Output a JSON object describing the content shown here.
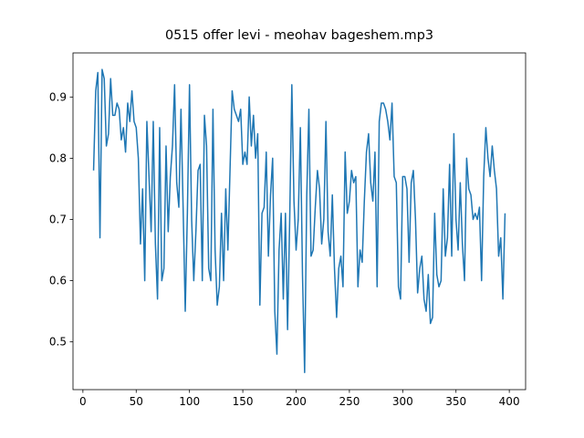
{
  "chart_data": {
    "type": "line",
    "title": "0515 offer levi - meohav bageshem.mp3",
    "x": [
      10,
      12,
      14,
      16,
      18,
      20,
      22,
      24,
      26,
      28,
      30,
      32,
      34,
      36,
      38,
      40,
      42,
      44,
      46,
      48,
      50,
      52,
      54,
      56,
      58,
      60,
      62,
      64,
      66,
      68,
      70,
      72,
      74,
      76,
      78,
      80,
      82,
      84,
      86,
      88,
      90,
      92,
      94,
      96,
      98,
      100,
      102,
      104,
      106,
      108,
      110,
      112,
      114,
      116,
      118,
      120,
      122,
      124,
      126,
      128,
      130,
      132,
      134,
      136,
      138,
      140,
      142,
      144,
      146,
      148,
      150,
      152,
      154,
      156,
      158,
      160,
      162,
      164,
      166,
      168,
      170,
      172,
      174,
      176,
      178,
      180,
      182,
      184,
      186,
      188,
      190,
      192,
      194,
      196,
      198,
      200,
      202,
      204,
      206,
      208,
      210,
      212,
      214,
      216,
      218,
      220,
      222,
      224,
      226,
      228,
      230,
      232,
      234,
      236,
      238,
      240,
      242,
      244,
      246,
      248,
      250,
      252,
      254,
      256,
      258,
      260,
      262,
      264,
      266,
      268,
      270,
      272,
      274,
      276,
      278,
      280,
      282,
      284,
      286,
      288,
      290,
      292,
      294,
      296,
      298,
      300,
      302,
      304,
      306,
      308,
      310,
      312,
      314,
      316,
      318,
      320,
      322,
      324,
      326,
      328,
      330,
      332,
      334,
      336,
      338,
      340,
      342,
      344,
      346,
      348,
      350,
      352,
      354,
      356,
      358,
      360,
      362,
      364,
      366,
      368,
      370,
      372,
      374,
      376,
      378,
      380,
      382,
      384,
      386,
      388,
      390,
      392,
      394,
      396
    ],
    "series": [
      {
        "color": "#1f77b4",
        "values": [
          0.78,
          0.91,
          0.94,
          0.67,
          0.945,
          0.93,
          0.82,
          0.84,
          0.93,
          0.87,
          0.87,
          0.89,
          0.88,
          0.83,
          0.85,
          0.81,
          0.89,
          0.86,
          0.91,
          0.86,
          0.85,
          0.8,
          0.66,
          0.75,
          0.6,
          0.86,
          0.77,
          0.68,
          0.86,
          0.66,
          0.57,
          0.85,
          0.6,
          0.62,
          0.82,
          0.68,
          0.77,
          0.82,
          0.92,
          0.76,
          0.72,
          0.88,
          0.72,
          0.55,
          0.71,
          0.92,
          0.7,
          0.6,
          0.68,
          0.78,
          0.79,
          0.6,
          0.87,
          0.82,
          0.62,
          0.6,
          0.88,
          0.65,
          0.56,
          0.59,
          0.71,
          0.6,
          0.75,
          0.65,
          0.78,
          0.91,
          0.88,
          0.87,
          0.86,
          0.88,
          0.79,
          0.81,
          0.79,
          0.9,
          0.82,
          0.87,
          0.8,
          0.84,
          0.56,
          0.71,
          0.72,
          0.81,
          0.64,
          0.74,
          0.8,
          0.55,
          0.48,
          0.65,
          0.71,
          0.57,
          0.71,
          0.52,
          0.7,
          0.92,
          0.73,
          0.65,
          0.7,
          0.85,
          0.61,
          0.45,
          0.74,
          0.88,
          0.64,
          0.65,
          0.72,
          0.78,
          0.75,
          0.66,
          0.7,
          0.86,
          0.68,
          0.64,
          0.74,
          0.62,
          0.54,
          0.62,
          0.64,
          0.59,
          0.81,
          0.71,
          0.73,
          0.78,
          0.76,
          0.77,
          0.59,
          0.65,
          0.63,
          0.73,
          0.81,
          0.84,
          0.76,
          0.73,
          0.81,
          0.59,
          0.86,
          0.89,
          0.89,
          0.88,
          0.86,
          0.83,
          0.89,
          0.77,
          0.76,
          0.59,
          0.57,
          0.77,
          0.77,
          0.75,
          0.63,
          0.76,
          0.78,
          0.7,
          0.58,
          0.62,
          0.64,
          0.57,
          0.55,
          0.61,
          0.53,
          0.54,
          0.71,
          0.61,
          0.59,
          0.6,
          0.75,
          0.64,
          0.67,
          0.79,
          0.64,
          0.84,
          0.7,
          0.65,
          0.76,
          0.66,
          0.6,
          0.8,
          0.75,
          0.74,
          0.7,
          0.71,
          0.7,
          0.72,
          0.6,
          0.77,
          0.85,
          0.8,
          0.77,
          0.82,
          0.78,
          0.75,
          0.64,
          0.67,
          0.57,
          0.71
        ]
      }
    ],
    "xlim": [
      -9.3,
      415.3
    ],
    "xticks": [
      0,
      50,
      100,
      150,
      200,
      250,
      300,
      350,
      400
    ],
    "ylim": [
      0.422,
      0.972
    ],
    "yticks": [
      0.5,
      0.6,
      0.7,
      0.8,
      0.9
    ]
  }
}
